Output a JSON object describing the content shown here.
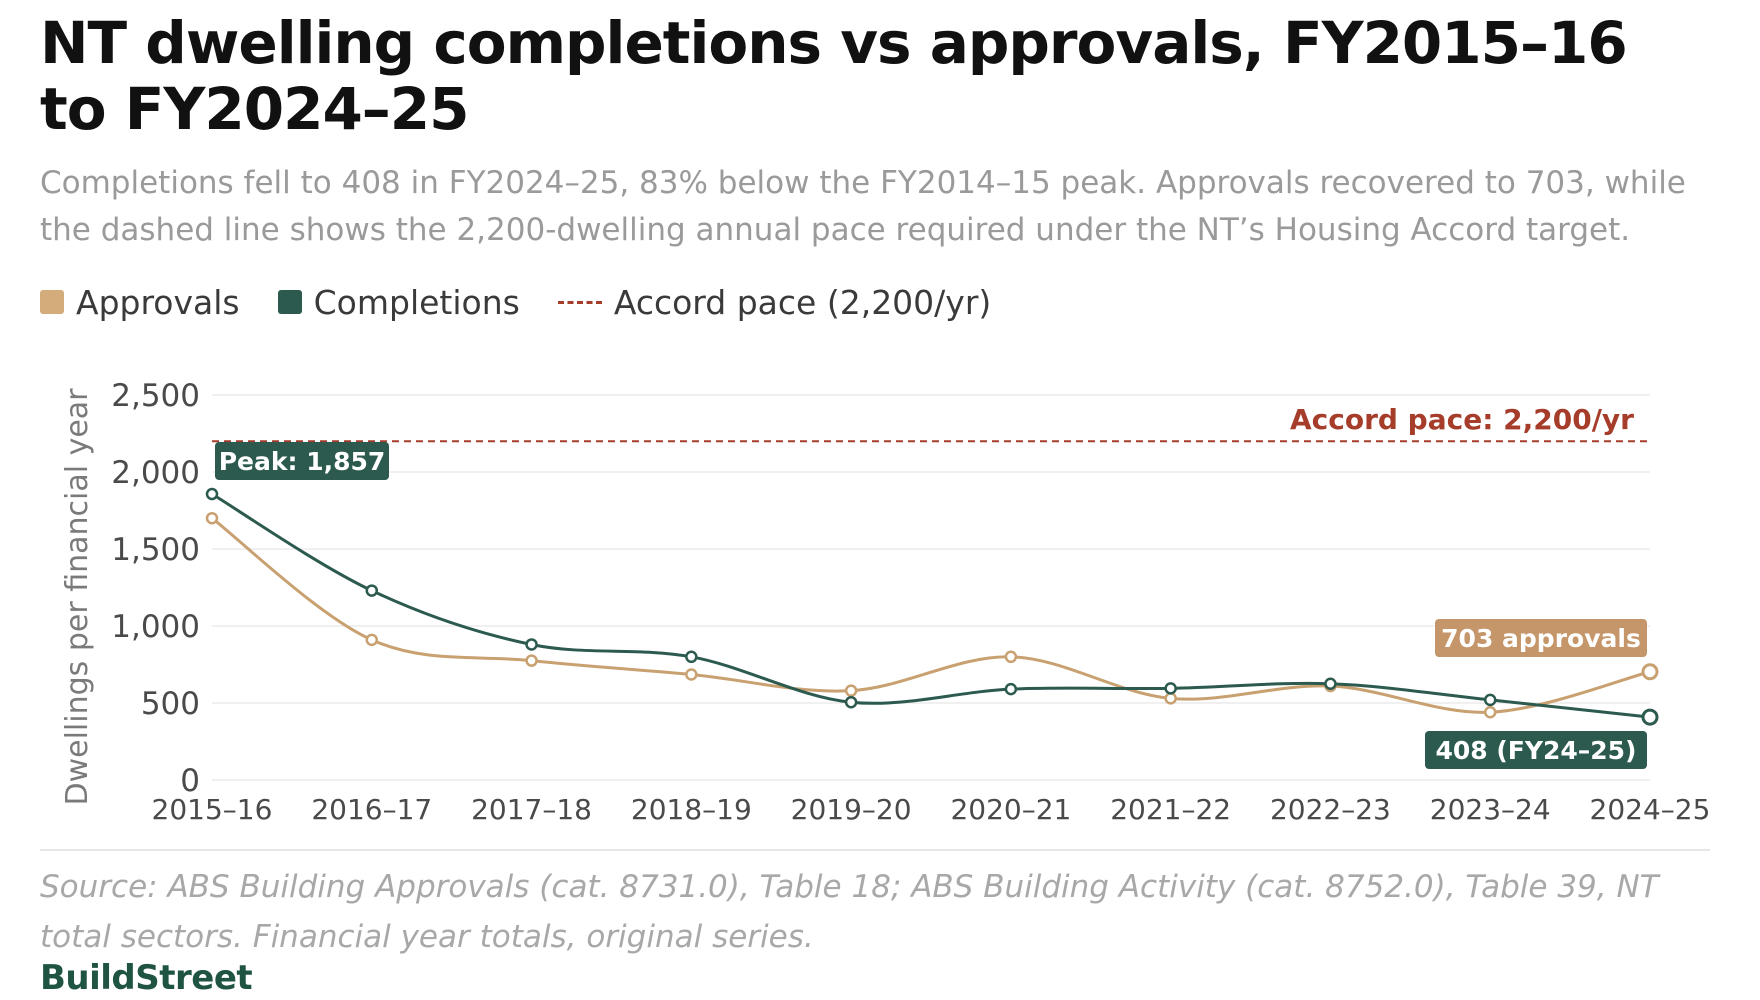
{
  "title": "NT dwelling completions vs approvals, FY2015–16 to FY2024–25",
  "subtitle": "Completions fell to 408 in FY2024–25, 83% below the FY2014–15 peak. Approvals recovered to 703, while the dashed line shows the 2,200-dwelling annual pace required under the NT’s Housing Accord target.",
  "legend": {
    "approvals": "Approvals",
    "completions": "Completions",
    "accord": "Accord pace (2,200/yr)"
  },
  "colors": {
    "approvals": "#c9a171",
    "completions": "#2c5a4f",
    "accord": "#a63c2a",
    "grid": "#ececec",
    "axis_text": "#4a4a4a"
  },
  "chart_data": {
    "type": "line",
    "categories": [
      "2015–16",
      "2016–17",
      "2017–18",
      "2018–19",
      "2019–20",
      "2020–21",
      "2021–22",
      "2022–23",
      "2023–24",
      "2024–25"
    ],
    "series": [
      {
        "name": "Approvals",
        "values": [
          1700,
          910,
          775,
          685,
          580,
          800,
          530,
          610,
          440,
          703
        ]
      },
      {
        "name": "Completions",
        "values": [
          1857,
          1230,
          880,
          800,
          505,
          590,
          595,
          625,
          520,
          408
        ]
      }
    ],
    "reference_line": {
      "value": 2200,
      "label": "Accord pace: 2,200/yr"
    },
    "annotations": {
      "peak": "Peak: 1,857",
      "approvals_last": "703 approvals",
      "completions_last": "408 (FY24–25)"
    },
    "ylabel": "Dwellings per financial year",
    "xlabel": "",
    "ylim": [
      0,
      2500
    ],
    "yticks": [
      0,
      500,
      1000,
      1500,
      2000,
      2500
    ],
    "ytick_labels": [
      "0",
      "500",
      "1,000",
      "1,500",
      "2,000",
      "2,500"
    ],
    "grid": true,
    "legend_position": "top-left"
  },
  "source": "Source: ABS Building Approvals (cat. 8731.0), Table 18; ABS Building Activity (cat. 8752.0), Table 39, NT total sectors. Financial year totals, original series.",
  "brand": "BuildStreet"
}
